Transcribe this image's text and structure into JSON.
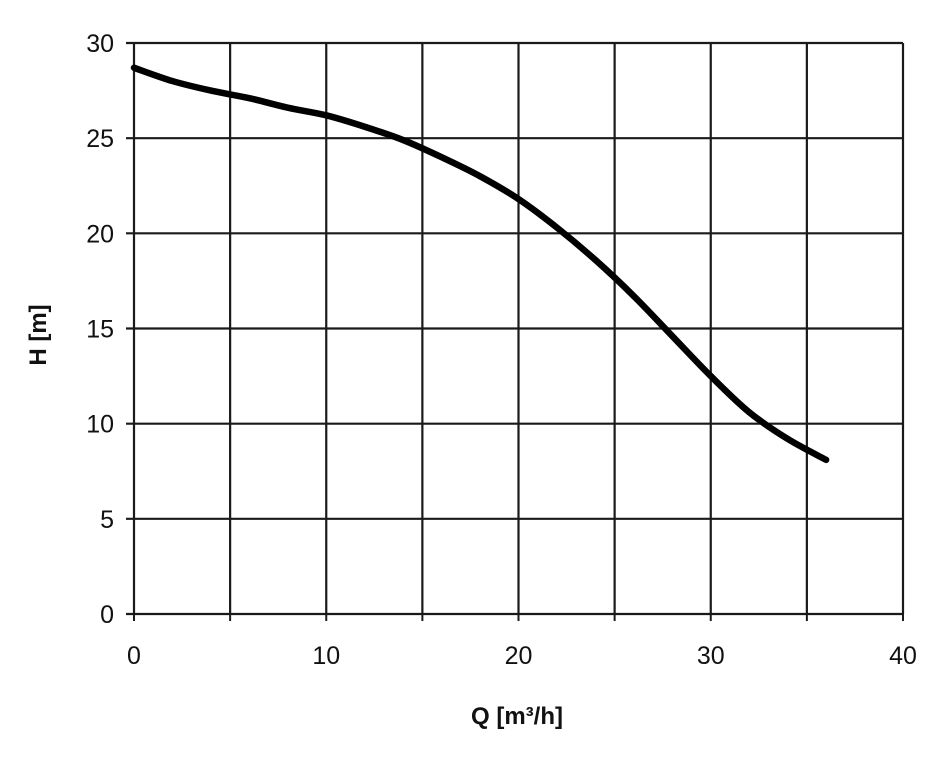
{
  "chart_data": {
    "type": "line",
    "title": "",
    "xlabel": "Q [m³/h]",
    "ylabel": "H [m]",
    "xlim": [
      0,
      40
    ],
    "ylim": [
      0,
      30
    ],
    "x_ticks": [
      0,
      10,
      20,
      30,
      40
    ],
    "y_ticks": [
      0,
      5,
      10,
      15,
      20,
      25,
      30
    ],
    "grid": true,
    "legend": "none",
    "series": [
      {
        "x": [
          0,
          2,
          4,
          6,
          8,
          10,
          12,
          14,
          16,
          18,
          20,
          22,
          24,
          26,
          28,
          30,
          32,
          34,
          36
        ],
        "y": [
          28.7,
          28.0,
          27.5,
          27.1,
          26.6,
          26.2,
          25.6,
          24.9,
          24.0,
          23.0,
          21.8,
          20.3,
          18.6,
          16.7,
          14.6,
          12.5,
          10.6,
          9.2,
          8.1
        ]
      }
    ],
    "colors": {
      "line": "#000000",
      "grid": "#1a1a1a",
      "axis": "#1a1a1a"
    }
  }
}
